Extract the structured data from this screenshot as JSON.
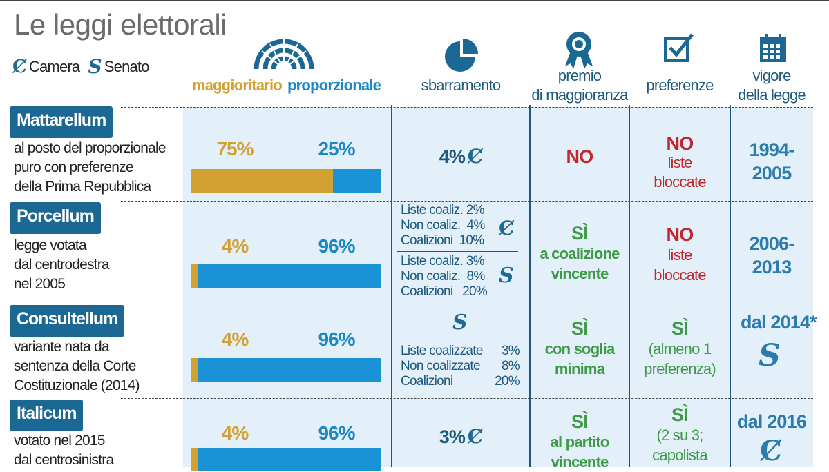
{
  "title": "Le leggi elettorali",
  "legend": {
    "camera": "Camera",
    "senato": "Senato",
    "camera_icon": "camera-logo-icon",
    "senato_icon": "senato-logo-icon"
  },
  "colors": {
    "maggioritario": "#d3a132",
    "proporzionale": "#1a93d6",
    "label_box": "#1b6894",
    "yes": "#3d9a45",
    "no": "#c1272d",
    "year": "#2b7cad",
    "cell_bg": "#e3eff9"
  },
  "headers": {
    "maggioritario": "maggioritario",
    "proporzionale": "proporzionale",
    "sbarramento": "sbarramento",
    "premio_1": "premio",
    "premio_2": "di maggioranza",
    "preferenze": "preferenze",
    "vigore_1": "vigore",
    "vigore_2": "della legge"
  },
  "rows": [
    {
      "name": "Mattarellum",
      "desc": [
        "al posto del proporzionale",
        "puro con preferenze",
        "della Prima Repubblica"
      ],
      "maggioritario": 75,
      "proporzionale": 25,
      "magg_label": "75%",
      "prop_label": "25%",
      "sbarramento": "4%",
      "premio": {
        "main": "NO",
        "sub": ""
      },
      "preferenze": {
        "main": "NO",
        "sub1": "liste",
        "sub2": "bloccate"
      },
      "vigore": [
        "1994-",
        "2005"
      ]
    },
    {
      "name": "Porcellum",
      "desc": [
        "legge votata",
        "dal centrodestra",
        "nel 2005"
      ],
      "maggioritario": 4,
      "proporzionale": 96,
      "magg_label": "4%",
      "prop_label": "96%",
      "sbarramento_camera": [
        "Liste coaliz. 2%",
        "Non coaliz.  4%",
        "Coalizioni  10%"
      ],
      "sbarramento_senato": [
        "Liste coaliz. 3%",
        "Non coaliz.  8%",
        "Coalizioni   20%"
      ],
      "premio": {
        "main": "SÌ",
        "sub1": "a coalizione",
        "sub2": "vincente"
      },
      "preferenze": {
        "main": "NO",
        "sub1": "liste",
        "sub2": "bloccate"
      },
      "vigore": [
        "2006-",
        "2013"
      ]
    },
    {
      "name": "Consultellum",
      "desc": [
        "variante nata da",
        "sentenza della Corte",
        "Costituzionale (2014)"
      ],
      "maggioritario": 4,
      "proporzionale": 96,
      "magg_label": "4%",
      "prop_label": "96%",
      "sbarramento_senato": [
        "Liste coalizzate",
        "Non coalizzate",
        "Coalizioni"
      ],
      "sbarramento_values": [
        "3%",
        "8%",
        "20%"
      ],
      "premio": {
        "main": "SÌ",
        "sub1": "con soglia",
        "sub2": "minima"
      },
      "preferenze": {
        "main": "SÌ",
        "sub1": "(almeno 1",
        "sub2": "preferenza)"
      },
      "vigore": [
        "dal 2014*"
      ]
    },
    {
      "name": "Italicum",
      "desc": [
        "votato nel 2015",
        "dal centrosinistra"
      ],
      "maggioritario": 4,
      "proporzionale": 96,
      "magg_label": "4%",
      "prop_label": "96%",
      "sbarramento": "3%",
      "premio": {
        "main": "SÌ",
        "sub1": "al partito",
        "sub2": "vincente"
      },
      "preferenze": {
        "main": "SÌ",
        "sub1": "(2 su 3;",
        "sub2": "capolista"
      },
      "vigore": [
        "dal 2016"
      ]
    }
  ]
}
